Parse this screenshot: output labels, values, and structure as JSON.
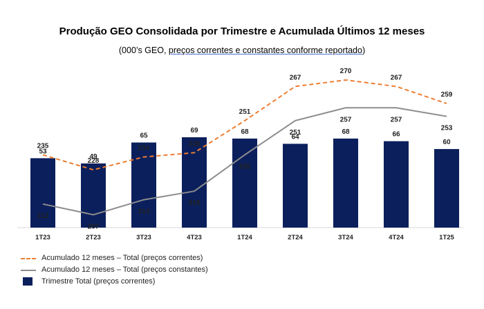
{
  "chart_data": {
    "type": "bar",
    "title": "Produção GEO Consolidada por Trimestre e Acumulada Últimos 12 meses",
    "subtitle_prefix": "(000’s GEO, ",
    "subtitle_underlined": "preços correntes e constantes conforme reportado",
    "subtitle_suffix": ")",
    "categories": [
      "1T23",
      "2T23",
      "3T23",
      "4T23",
      "1T24",
      "2T24",
      "3T24",
      "4T24",
      "1T25"
    ],
    "series": [
      {
        "name": "Acumulado 12 meses – Total (preços correntes)",
        "type": "line",
        "style": "dashed",
        "color": "#ed7d31",
        "values": [
          235,
          228,
          234,
          236,
          251,
          267,
          270,
          267,
          259
        ]
      },
      {
        "name": "Acumulado 12 meses – Total (preços constantes)",
        "type": "line",
        "style": "solid",
        "color": "#8c8c8c",
        "values": [
          212,
          207,
          214,
          218,
          235,
          251,
          257,
          257,
          253
        ]
      },
      {
        "name": "Trimestre Total (preços correntes)",
        "type": "bar",
        "color": "#0b1f5c",
        "values": [
          53,
          49,
          65,
          69,
          68,
          64,
          68,
          66,
          60
        ]
      }
    ],
    "legend_position": "bottom-left",
    "grid": false
  }
}
